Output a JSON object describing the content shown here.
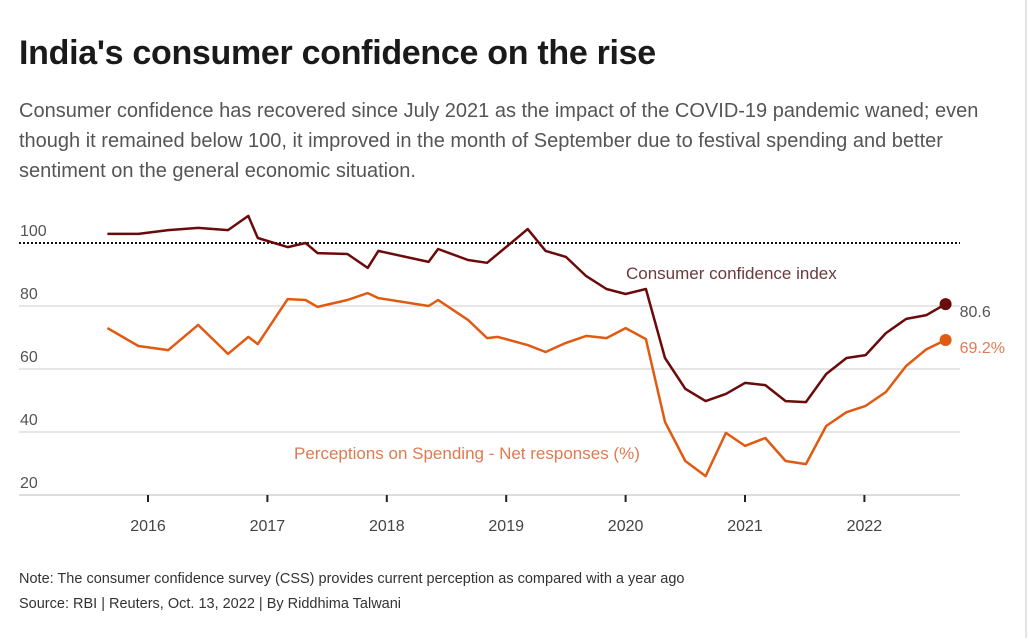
{
  "title": "India's consumer confidence on the rise",
  "subtitle": "Consumer confidence has recovered since July 2021 as the impact of the COVID-19 pandemic waned; even though it remained below 100, it improved in the month of September due to festival spending and better sentiment on the general economic situation.",
  "note": "Note: The consumer confidence survey (CSS) provides current perception as compared with a year ago",
  "source": "Source: RBI | Reuters, Oct. 13, 2022 | By Riddhima Talwani",
  "chart_data": {
    "type": "line",
    "title": "India's consumer confidence on the rise",
    "xlabel": "",
    "ylabel": "",
    "xlim": [
      2015.3,
      2022.78
    ],
    "ylim": [
      20,
      110
    ],
    "yticks": [
      20,
      40,
      60,
      80,
      100
    ],
    "ytick_labels": [
      "20",
      "40",
      "60",
      "80",
      "100"
    ],
    "xticks": [
      2016,
      2017,
      2018,
      2019,
      2020,
      2021,
      2022
    ],
    "xtick_labels": [
      "2016",
      "2017",
      "2018",
      "2019",
      "2020",
      "2021",
      "2022"
    ],
    "reference_line": 100,
    "grid": true,
    "series": [
      {
        "name": "Consumer confidence index",
        "color": "#6b0a0a",
        "end_label": "80.6",
        "x": [
          2015.66,
          2015.92,
          2016.17,
          2016.42,
          2016.67,
          2016.84,
          2016.92,
          2017.17,
          2017.32,
          2017.42,
          2017.67,
          2017.84,
          2017.93,
          2018.35,
          2018.43,
          2018.68,
          2018.84,
          2019.18,
          2019.33,
          2019.5,
          2019.67,
          2019.84,
          2020.0,
          2020.17,
          2020.33,
          2020.5,
          2020.67,
          2020.84,
          2021.0,
          2021.17,
          2021.34,
          2021.51,
          2021.68,
          2021.85,
          2022.01,
          2022.18,
          2022.35,
          2022.52,
          2022.68
        ],
        "values": [
          102.9,
          102.9,
          104.1,
          104.8,
          104.1,
          108.6,
          101.6,
          98.7,
          100,
          96.8,
          96.5,
          92.1,
          97.5,
          94,
          98.1,
          94.6,
          93.7,
          104.4,
          97.5,
          95.6,
          89.5,
          85.4,
          83.8,
          85.4,
          63.5,
          53.7,
          49.8,
          52.1,
          55.6,
          54.9,
          49.8,
          49.5,
          58.4,
          63.5,
          64.4,
          71.4,
          75.9,
          77.1,
          80.6
        ]
      },
      {
        "name": "Perceptions on Spending - Net responses (%)",
        "color": "#e05a12",
        "end_label": "69.2%",
        "x": [
          2015.66,
          2015.92,
          2016.17,
          2016.42,
          2016.67,
          2016.84,
          2016.92,
          2017.17,
          2017.32,
          2017.42,
          2017.67,
          2017.84,
          2017.93,
          2018.35,
          2018.43,
          2018.68,
          2018.84,
          2018.93,
          2019.18,
          2019.33,
          2019.5,
          2019.67,
          2019.84,
          2020.0,
          2020.17,
          2020.33,
          2020.5,
          2020.67,
          2020.84,
          2021.0,
          2021.17,
          2021.34,
          2021.51,
          2021.68,
          2021.85,
          2022.01,
          2022.18,
          2022.35,
          2022.52,
          2022.68
        ],
        "values": [
          73,
          67.3,
          66,
          74,
          64.8,
          70.2,
          67.9,
          82.2,
          81.9,
          79.7,
          81.9,
          84.1,
          82.5,
          80,
          81.9,
          75.6,
          69.8,
          70.2,
          67.6,
          65.4,
          68.3,
          70.5,
          69.8,
          73,
          69.5,
          43.2,
          30.8,
          26,
          39.7,
          35.6,
          38.1,
          30.8,
          29.8,
          41.9,
          46.3,
          48.3,
          52.7,
          61,
          66.3,
          69.2
        ]
      }
    ]
  }
}
